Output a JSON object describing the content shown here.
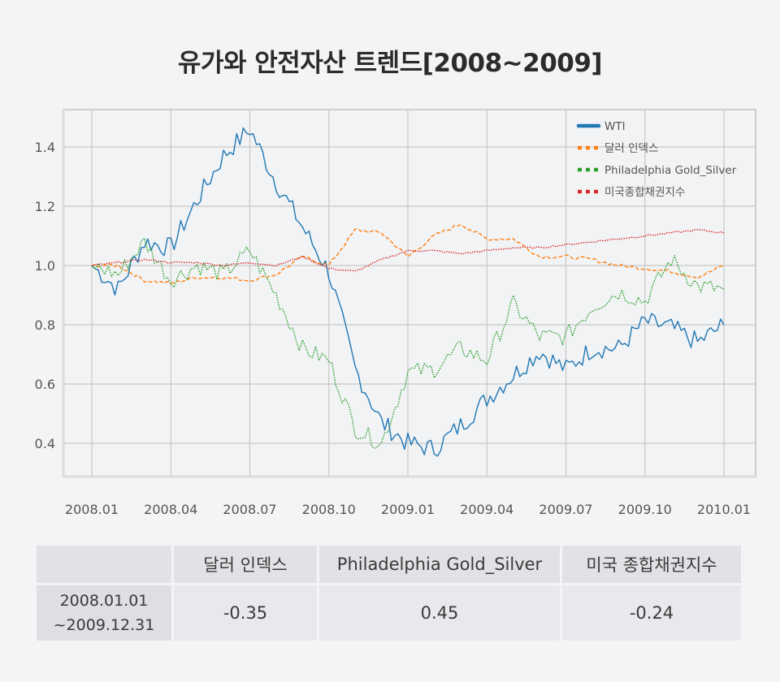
{
  "title": "유가와 안전자산 트렌드[2008~2009]",
  "chart_data": {
    "type": "line",
    "title": "유가와 안전자산 트렌드[2008~2009]",
    "xlabel": "",
    "ylabel": "",
    "x_ticks": [
      "2008.01",
      "2008.04",
      "2008.07",
      "2008.10",
      "2009.01",
      "2009.04",
      "2009.07",
      "2009.10",
      "2010.01"
    ],
    "y_ticks": [
      "0.4",
      "0.6",
      "0.8",
      "1.0",
      "1.2",
      "1.4"
    ],
    "ylim": [
      0.29,
      1.53
    ],
    "grid": true,
    "legend_position": "upper right",
    "x": [
      "2008.01",
      "2008.02",
      "2008.03",
      "2008.04",
      "2008.05",
      "2008.06",
      "2008.07",
      "2008.08",
      "2008.09",
      "2008.10",
      "2008.11",
      "2008.12",
      "2009.01",
      "2009.02",
      "2009.03",
      "2009.04",
      "2009.05",
      "2009.06",
      "2009.07",
      "2009.08",
      "2009.09",
      "2009.10",
      "2009.11",
      "2009.12",
      "2010.01"
    ],
    "series": [
      {
        "name": "WTI",
        "color": "#1f77b4",
        "style": "solid",
        "values": [
          1.0,
          0.92,
          1.08,
          1.06,
          1.22,
          1.37,
          1.46,
          1.28,
          1.13,
          0.98,
          0.65,
          0.47,
          0.4,
          0.38,
          0.46,
          0.55,
          0.63,
          0.71,
          0.65,
          0.72,
          0.72,
          0.81,
          0.79,
          0.74,
          0.8
        ]
      },
      {
        "name": "달러 인덱스",
        "color": "#ff7f0e",
        "style": "dashed",
        "values": [
          1.0,
          1.0,
          0.95,
          0.94,
          0.96,
          0.96,
          0.95,
          0.97,
          1.03,
          1.0,
          1.12,
          1.11,
          1.03,
          1.1,
          1.14,
          1.09,
          1.09,
          1.03,
          1.03,
          1.02,
          1.0,
          0.99,
          0.98,
          0.96,
          1.0
        ]
      },
      {
        "name": "Philadelphia Gold_Silver",
        "color": "#2ca02c",
        "style": "dotted",
        "values": [
          1.0,
          0.97,
          1.08,
          0.95,
          1.0,
          0.97,
          1.05,
          0.9,
          0.72,
          0.68,
          0.45,
          0.4,
          0.64,
          0.65,
          0.72,
          0.68,
          0.87,
          0.76,
          0.76,
          0.86,
          0.91,
          0.88,
          1.02,
          0.93,
          0.92
        ]
      },
      {
        "name": "미국종합채권지수",
        "color": "#d62728",
        "style": "dotted",
        "values": [
          1.0,
          1.01,
          1.02,
          1.01,
          1.01,
          1.0,
          1.01,
          1.0,
          1.03,
          0.99,
          0.98,
          1.02,
          1.05,
          1.05,
          1.04,
          1.05,
          1.06,
          1.06,
          1.07,
          1.08,
          1.09,
          1.1,
          1.11,
          1.12,
          1.11
        ]
      }
    ]
  },
  "legend": [
    {
      "label": "WTI",
      "color": "#1f77b4"
    },
    {
      "label": "달러 인덱스",
      "color": "#ff7f0e"
    },
    {
      "label": "Philadelphia Gold_Silver",
      "color": "#2ca02c"
    },
    {
      "label": "미국종합채권지수",
      "color": "#d62728"
    }
  ],
  "table": {
    "headers": [
      "",
      "달러 인덱스",
      "Philadelphia Gold_Silver",
      "미국 종합채권지수"
    ],
    "rows": [
      {
        "label_line1": "2008.01.01",
        "label_line2": "~2009.12.31",
        "values": [
          "-0.35",
          "0.45",
          "-0.24"
        ]
      }
    ]
  }
}
